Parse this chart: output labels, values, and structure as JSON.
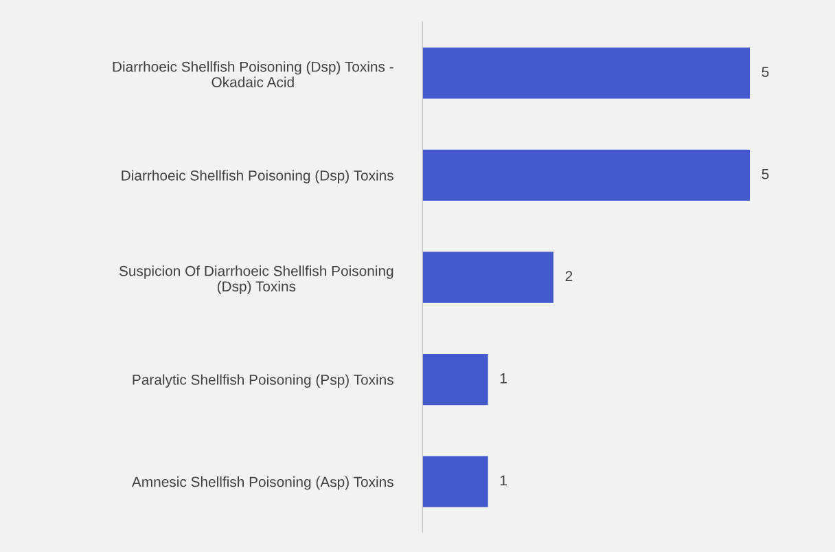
{
  "chart_data": {
    "type": "bar",
    "orientation": "horizontal",
    "categories": [
      "Diarrhoeic Shellfish Poisoning (Dsp) Toxins -\nOkadaic Acid",
      "Diarrhoeic Shellfish Poisoning (Dsp) Toxins",
      "Suspicion Of Diarrhoeic Shellfish Poisoning\n(Dsp) Toxins",
      "Paralytic Shellfish Poisoning (Psp) Toxins",
      "Amnesic Shellfish Poisoning (Asp) Toxins"
    ],
    "values": [
      5,
      5,
      2,
      1,
      1
    ],
    "color": "#4459cc",
    "data_labels": true
  }
}
